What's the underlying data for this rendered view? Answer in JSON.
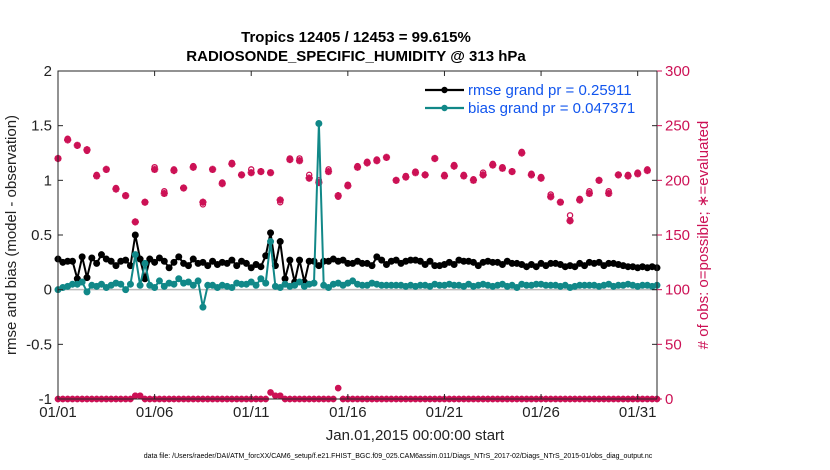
{
  "chart_data": {
    "type": "line",
    "title_line1": "Tropics 12405 / 12453 = 99.615%",
    "title_line2": "RADIOSONDE_SPECIFIC_HUMIDITY @ 313 hPa",
    "ylabel_left": "rmse and bias (model - observation)",
    "ylabel_right": "# of obs: o=possible; ∗=evaluated",
    "xlabel": "Jan.01,2015 00:00:00 start",
    "footnote": "data file: /Users/raeder/DAI/ATM_forcXX/CAM6_setup/f.e21.FHIST_BGC.f09_025.CAM6assim.011/Diags_NTrS_2017-02/Diags_NTrS_2015-01/obs_diag_output.nc",
    "ylim_left": [
      -1,
      2
    ],
    "ylim_right": [
      0,
      300
    ],
    "xlim": [
      1,
      32
    ],
    "yticks_left": [
      "-1",
      "-0.5",
      "0",
      "0.5",
      "1",
      "1.5",
      "2"
    ],
    "yticks_right": [
      "0",
      "50",
      "100",
      "150",
      "200",
      "250",
      "300"
    ],
    "xticks": [
      {
        "value": 1,
        "label": "01/01"
      },
      {
        "value": 6,
        "label": "01/06"
      },
      {
        "value": 11,
        "label": "01/11"
      },
      {
        "value": 16,
        "label": "01/16"
      },
      {
        "value": 21,
        "label": "01/21"
      },
      {
        "value": 26,
        "label": "01/26"
      },
      {
        "value": 31,
        "label": "01/31"
      }
    ],
    "x_start": 1.0,
    "x_step": 0.25,
    "series": [
      {
        "name": "rmse grand pr = 0.25911",
        "axis": "left",
        "color": "#000000",
        "values": [
          0.28,
          0.25,
          0.26,
          0.26,
          0.1,
          0.3,
          0.11,
          0.29,
          0.24,
          0.32,
          0.28,
          0.26,
          0.22,
          0.26,
          0.27,
          0.22,
          0.5,
          0.28,
          0.1,
          0.28,
          0.25,
          0.29,
          0.26,
          0.2,
          0.25,
          0.3,
          0.24,
          0.22,
          0.28,
          0.24,
          0.25,
          0.22,
          0.26,
          0.23,
          0.25,
          0.24,
          0.27,
          0.22,
          0.26,
          0.24,
          0.2,
          0.23,
          0.21,
          0.31,
          0.52,
          0.22,
          0.44,
          0.1,
          0.27,
          0.07,
          0.27,
          0.07,
          0.26,
          0.26,
          0.22,
          0.26,
          0.26,
          0.28,
          0.26,
          0.27,
          0.24,
          0.24,
          0.26,
          0.24,
          0.24,
          0.22,
          0.3,
          0.27,
          0.23,
          0.26,
          0.27,
          0.24,
          0.26,
          0.27,
          0.27,
          0.26,
          0.23,
          0.26,
          0.22,
          0.22,
          0.23,
          0.25,
          0.23,
          0.27,
          0.26,
          0.26,
          0.25,
          0.22,
          0.25,
          0.26,
          0.25,
          0.25,
          0.23,
          0.26,
          0.24,
          0.24,
          0.23,
          0.21,
          0.23,
          0.21,
          0.24,
          0.22,
          0.24,
          0.24,
          0.23,
          0.21,
          0.22,
          0.21,
          0.24,
          0.22,
          0.25,
          0.24,
          0.25,
          0.22,
          0.24,
          0.24,
          0.23,
          0.22,
          0.21,
          0.21,
          0.2,
          0.21,
          0.2,
          0.21,
          0.2
        ]
      },
      {
        "name": "bias grand pr = 0.047371",
        "axis": "left",
        "color": "#118888",
        "values": [
          0.0,
          0.02,
          0.03,
          0.05,
          0.05,
          0.07,
          -0.02,
          0.04,
          0.03,
          0.05,
          0.02,
          0.04,
          0.06,
          0.05,
          0.0,
          0.05,
          0.32,
          0.04,
          0.24,
          0.04,
          0.02,
          0.08,
          0.03,
          0.06,
          0.05,
          0.1,
          0.06,
          0.07,
          0.04,
          0.08,
          -0.16,
          0.04,
          0.04,
          0.02,
          0.04,
          0.03,
          0.02,
          0.06,
          0.05,
          0.05,
          0.07,
          0.04,
          0.1,
          0.06,
          0.44,
          0.03,
          0.02,
          0.05,
          0.03,
          0.04,
          0.07,
          0.03,
          0.05,
          0.06,
          1.52,
          0.04,
          0.02,
          0.05,
          0.06,
          0.04,
          0.06,
          0.08,
          0.05,
          0.04,
          0.04,
          0.06,
          0.05,
          0.04,
          0.04,
          0.04,
          0.04,
          0.04,
          0.03,
          0.04,
          0.03,
          0.04,
          0.04,
          0.03,
          0.05,
          0.04,
          0.04,
          0.05,
          0.04,
          0.04,
          0.03,
          0.05,
          0.03,
          0.04,
          0.05,
          0.04,
          0.03,
          0.04,
          0.05,
          0.03,
          0.04,
          0.02,
          0.05,
          0.04,
          0.04,
          0.05,
          0.05,
          0.04,
          0.04,
          0.04,
          0.03,
          0.04,
          0.02,
          0.03,
          0.04,
          0.04,
          0.04,
          0.04,
          0.03,
          0.04,
          0.05,
          0.03,
          0.04,
          0.04,
          0.05,
          0.04,
          0.03,
          0.04,
          0.04,
          0.03,
          0.04
        ]
      },
      {
        "name": "possible obs (o)",
        "axis": "right",
        "color": "#cc1155",
        "x": [
          1.0,
          1.5,
          2.0,
          2.5,
          3.0,
          3.5,
          4.0,
          4.5,
          5.0,
          5.5,
          6.0,
          6.5,
          7.0,
          7.5,
          8.0,
          8.5,
          9.0,
          9.5,
          10.0,
          10.5,
          11.0,
          11.5,
          12.0,
          12.5,
          13.0,
          13.5,
          14.0,
          14.5,
          15.0,
          15.5,
          16.0,
          16.5,
          17.0,
          17.5,
          18.0,
          18.5,
          19.0,
          19.5,
          20.0,
          20.5,
          21.0,
          21.5,
          22.0,
          22.5,
          23.0,
          23.5,
          24.0,
          24.5,
          25.0,
          25.5,
          26.0,
          26.5,
          27.0,
          27.5,
          28.0,
          28.5,
          29.0,
          29.5,
          30.0,
          30.5,
          31.0,
          31.5
        ],
        "values": [
          220,
          238,
          232,
          227,
          205,
          210,
          193,
          186,
          162,
          180,
          212,
          190,
          210,
          193,
          213,
          178,
          210,
          198,
          216,
          205,
          210,
          208,
          207,
          180,
          220,
          220,
          205,
          200,
          210,
          185,
          196,
          213,
          217,
          219,
          221,
          200,
          204,
          208,
          205,
          220,
          205,
          214,
          205,
          201,
          207,
          215,
          212,
          208,
          226,
          206,
          203,
          187,
          180,
          168,
          183,
          190,
          200,
          190,
          205,
          205,
          207,
          210
        ]
      },
      {
        "name": "evaluated obs (∗)",
        "axis": "right",
        "color": "#cc1155",
        "x": [
          1.0,
          1.5,
          2.0,
          2.5,
          3.0,
          3.5,
          4.0,
          4.5,
          5.0,
          5.5,
          6.0,
          6.5,
          7.0,
          7.5,
          8.0,
          8.5,
          9.0,
          9.5,
          10.0,
          10.5,
          11.0,
          11.5,
          12.0,
          12.5,
          13.0,
          13.5,
          14.0,
          14.5,
          15.0,
          15.5,
          16.0,
          16.5,
          17.0,
          17.5,
          18.0,
          18.5,
          19.0,
          19.5,
          20.0,
          20.5,
          21.0,
          21.5,
          22.0,
          22.5,
          23.0,
          23.5,
          24.0,
          24.5,
          25.0,
          25.5,
          26.0,
          26.5,
          27.0,
          27.5,
          28.0,
          28.5,
          29.0,
          29.5,
          30.0,
          30.5,
          31.0,
          31.5
        ],
        "values": [
          220,
          237,
          232,
          228,
          204,
          210,
          192,
          186,
          162,
          180,
          210,
          188,
          209,
          193,
          212,
          180,
          210,
          197,
          215,
          205,
          207,
          208,
          207,
          182,
          219,
          218,
          202,
          198,
          208,
          186,
          195,
          212,
          216,
          218,
          221,
          200,
          203,
          207,
          205,
          220,
          204,
          213,
          204,
          200,
          205,
          214,
          211,
          208,
          225,
          205,
          202,
          185,
          180,
          163,
          182,
          188,
          200,
          188,
          205,
          204,
          206,
          209
        ]
      },
      {
        "name": "possible obs near zero (o)",
        "axis": "right",
        "color": "#cc1155",
        "values": [
          0,
          0,
          0,
          0,
          0,
          0,
          0,
          0,
          0,
          0,
          0,
          0,
          0,
          0,
          0,
          0,
          3,
          3,
          0,
          0,
          0,
          0,
          0,
          0,
          0,
          0,
          0,
          0,
          0,
          0,
          0,
          0,
          0,
          0,
          0,
          0,
          0,
          0,
          0,
          0,
          0,
          0,
          0,
          0,
          6,
          3,
          3,
          0,
          0,
          0,
          0,
          0,
          0,
          0,
          0,
          0,
          0,
          0,
          10,
          0,
          0,
          0,
          0,
          0,
          0,
          0,
          0,
          0,
          0,
          0,
          0,
          0,
          0,
          0,
          0,
          0,
          0,
          0,
          0,
          0,
          0,
          0,
          0,
          0,
          0,
          0,
          0,
          0,
          0,
          0,
          0,
          0,
          0,
          0,
          0,
          0,
          0,
          0,
          0,
          0,
          0,
          0,
          0,
          0,
          0,
          0,
          0,
          0,
          0,
          0,
          0,
          0,
          0,
          0,
          0,
          0,
          0,
          0,
          0,
          0,
          0,
          0,
          0,
          0,
          0
        ]
      }
    ],
    "legend": [
      {
        "label": "rmse grand pr = 0.25911",
        "color": "#000000"
      },
      {
        "label": "bias grand pr = 0.047371",
        "color": "#118888"
      }
    ]
  }
}
